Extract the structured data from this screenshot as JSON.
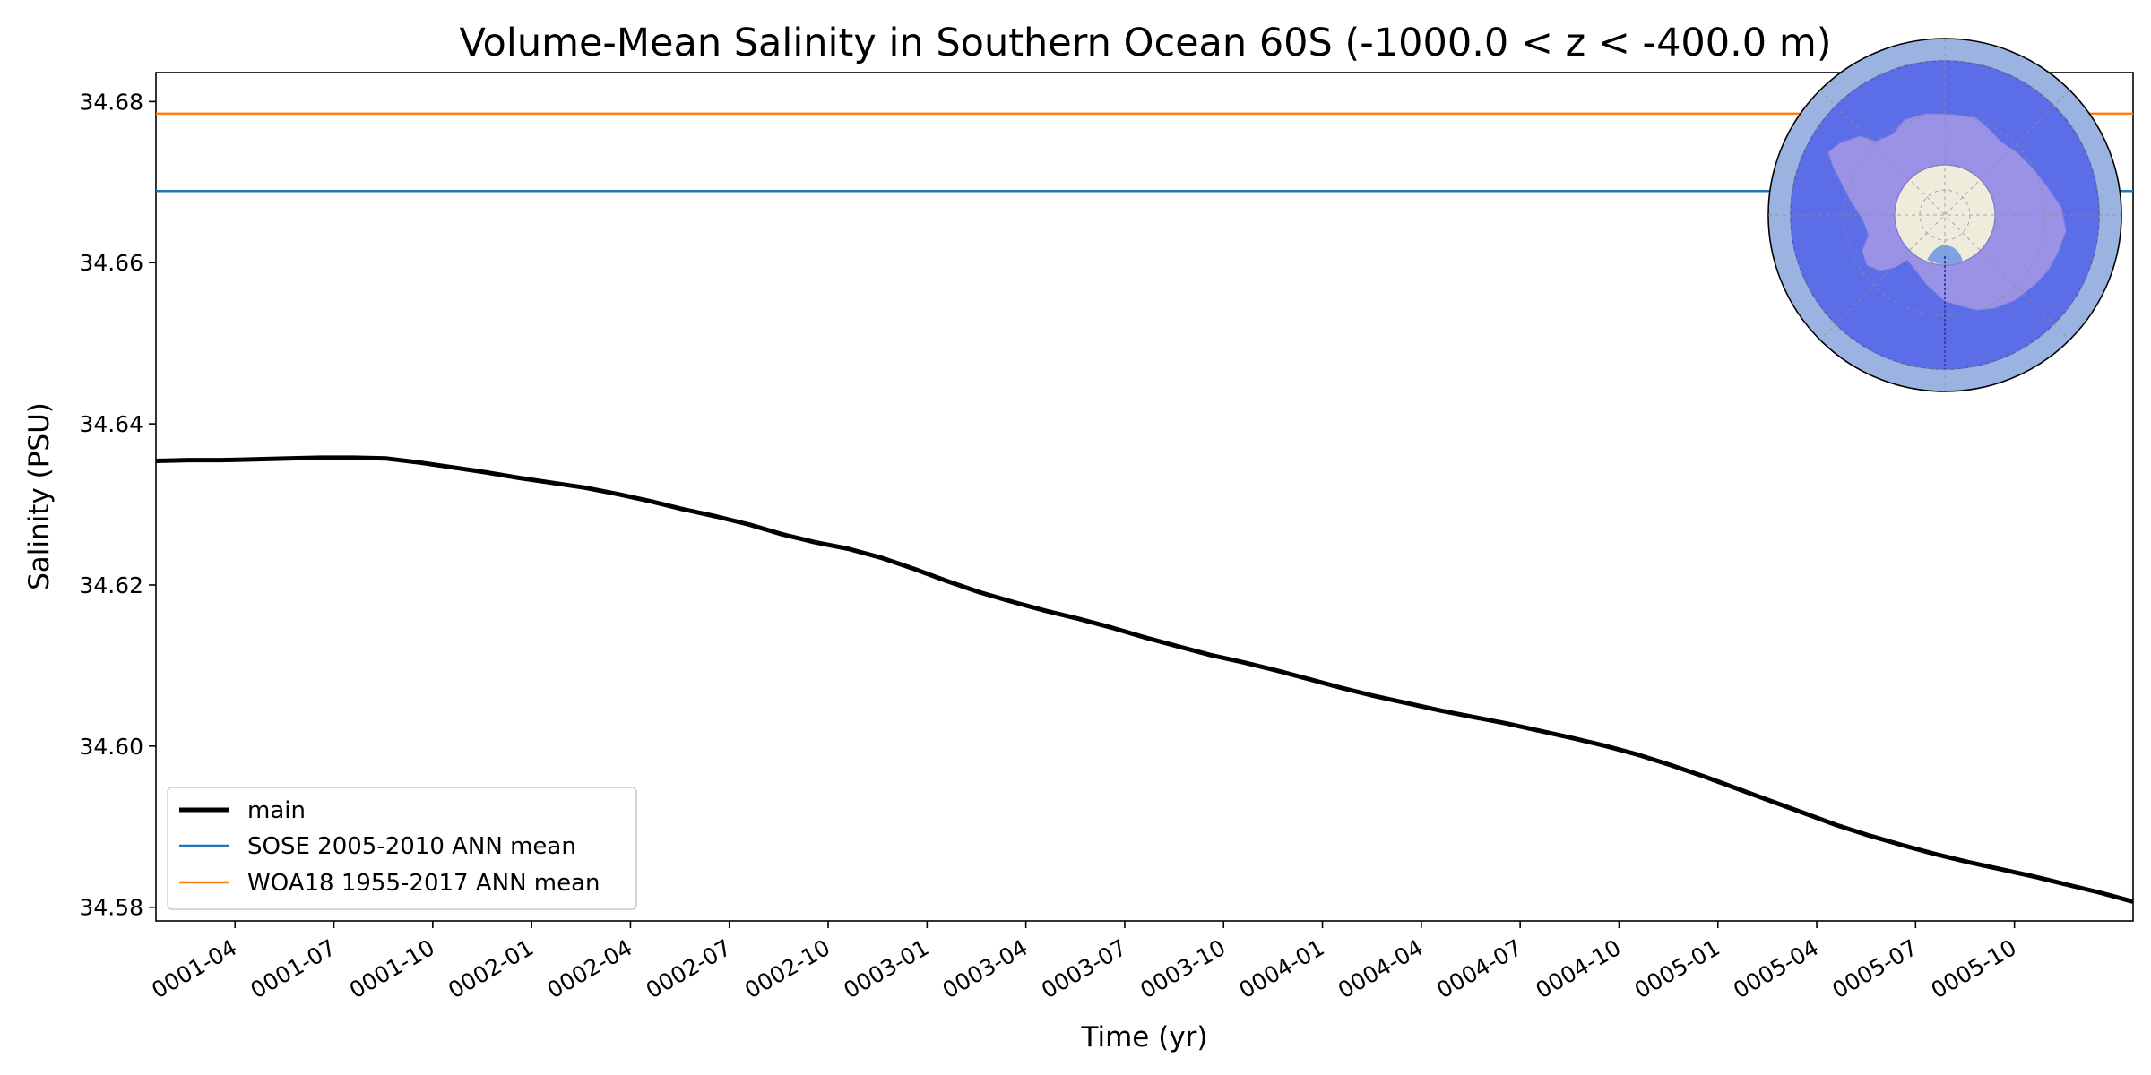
{
  "chart_data": {
    "type": "line",
    "title": "Volume-Mean Salinity in Southern Ocean 60S (-1000.0 < z < -400.0 m)",
    "xlabel": "Time (yr)",
    "ylabel": "Salinity (PSU)",
    "xlim": [
      1.0,
      6.0
    ],
    "ylim": [
      34.5783,
      34.6836
    ],
    "yticks": [
      34.58,
      34.6,
      34.62,
      34.64,
      34.66,
      34.68
    ],
    "ytick_labels": [
      "34.58",
      "34.60",
      "34.62",
      "34.64",
      "34.66",
      "34.68"
    ],
    "xticks": [
      {
        "t": 1.2,
        "label": "0001-04"
      },
      {
        "t": 1.45,
        "label": "0001-07"
      },
      {
        "t": 1.7,
        "label": "0001-10"
      },
      {
        "t": 1.95,
        "label": "0002-01"
      },
      {
        "t": 2.2,
        "label": "0002-04"
      },
      {
        "t": 2.45,
        "label": "0002-07"
      },
      {
        "t": 2.7,
        "label": "0002-10"
      },
      {
        "t": 2.95,
        "label": "0003-01"
      },
      {
        "t": 3.2,
        "label": "0003-04"
      },
      {
        "t": 3.45,
        "label": "0003-07"
      },
      {
        "t": 3.7,
        "label": "0003-10"
      },
      {
        "t": 3.95,
        "label": "0004-01"
      },
      {
        "t": 4.2,
        "label": "0004-04"
      },
      {
        "t": 4.45,
        "label": "0004-07"
      },
      {
        "t": 4.7,
        "label": "0004-10"
      },
      {
        "t": 4.95,
        "label": "0005-01"
      },
      {
        "t": 5.2,
        "label": "0005-04"
      },
      {
        "t": 5.45,
        "label": "0005-07"
      },
      {
        "t": 5.7,
        "label": "0005-10"
      }
    ],
    "series": [
      {
        "name": "main",
        "color": "#000000",
        "x": [
          1.0,
          1.083,
          1.167,
          1.25,
          1.333,
          1.417,
          1.5,
          1.583,
          1.667,
          1.75,
          1.833,
          1.917,
          2.0,
          2.083,
          2.167,
          2.25,
          2.333,
          2.417,
          2.5,
          2.583,
          2.667,
          2.75,
          2.833,
          2.917,
          3.0,
          3.083,
          3.167,
          3.25,
          3.333,
          3.417,
          3.5,
          3.583,
          3.667,
          3.75,
          3.833,
          3.917,
          4.0,
          4.083,
          4.167,
          4.25,
          4.333,
          4.417,
          4.5,
          4.583,
          4.667,
          4.75,
          4.833,
          4.917,
          5.0,
          5.083,
          5.167,
          5.25,
          5.333,
          5.417,
          5.5,
          5.583,
          5.667,
          5.75,
          5.833,
          5.917,
          6.0
        ],
        "values": [
          34.6354,
          34.6355,
          34.6355,
          34.6356,
          34.6357,
          34.6358,
          34.6358,
          34.6357,
          34.6352,
          34.6346,
          34.634,
          34.6333,
          34.6327,
          34.6321,
          34.6313,
          34.6304,
          34.6294,
          34.6285,
          34.6275,
          34.6263,
          34.6253,
          34.6245,
          34.6234,
          34.622,
          34.6205,
          34.6191,
          34.6179,
          34.6168,
          34.6158,
          34.6147,
          34.6135,
          34.6124,
          34.6113,
          34.6104,
          34.6094,
          34.6083,
          34.6072,
          34.6062,
          34.6053,
          34.6044,
          34.6036,
          34.6028,
          34.6019,
          34.601,
          34.6,
          34.5989,
          34.5976,
          34.5962,
          34.5947,
          34.5932,
          34.5917,
          34.5902,
          34.5889,
          34.5877,
          34.5866,
          34.5856,
          34.5847,
          34.5838,
          34.5828,
          34.5818,
          34.5807
        ]
      },
      {
        "name": "SOSE 2005-2010 ANN mean",
        "color": "#1f77b4",
        "constant": 34.6689
      },
      {
        "name": "WOA18 1955-2017 ANN mean",
        "color": "#ff7f0e",
        "constant": 34.6785
      }
    ],
    "legend": {
      "location": "lower-left",
      "entries": [
        "main",
        "SOSE 2005-2010 ANN mean",
        "WOA18 1955-2017 ANN mean"
      ]
    },
    "inset": {
      "type": "south-polar-map",
      "description": "Antarctica map with 60S region highlighted",
      "colors": {
        "ocean": "#5b6ee8",
        "rim": "#9ab3e0",
        "land": "#9a92e6",
        "pole": "#efecdb"
      }
    }
  }
}
